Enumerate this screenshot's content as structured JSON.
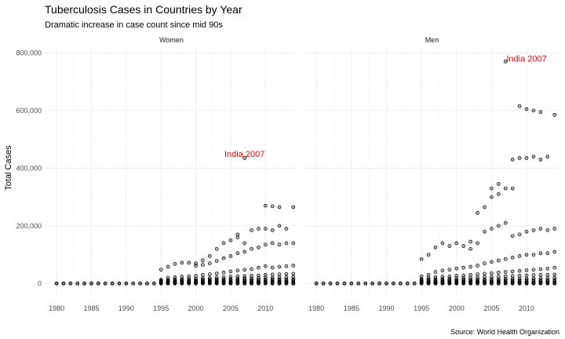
{
  "chart_data": {
    "type": "scatter",
    "title": "Tuberculosis Cases in Countries by Year",
    "subtitle": "Dramatic increase in case count since mid 90s",
    "ylabel": "Total Cases",
    "caption": "Source: World Health Organization",
    "xlim": [
      1978.3,
      2014.7
    ],
    "ylim": [
      -40000,
      820000
    ],
    "x_ticks": [
      1980,
      1985,
      1990,
      1995,
      2000,
      2005,
      2010
    ],
    "y_ticks": [
      0,
      200000,
      400000,
      600000,
      800000
    ],
    "y_tick_labels": [
      "0",
      "200,000",
      "400,000",
      "600,000",
      "800,000"
    ],
    "grid": true,
    "point_color": "#000000",
    "annotation_color": "#ff0000",
    "facets": [
      {
        "name": "Women",
        "annotation": {
          "text": "India 2007",
          "x": 2007,
          "y": 450000
        },
        "series": [
          {
            "x": 1980,
            "values": [
              0,
              500
            ]
          },
          {
            "x": 1981,
            "values": [
              0,
              400
            ]
          },
          {
            "x": 1982,
            "values": [
              0,
              500
            ]
          },
          {
            "x": 1983,
            "values": [
              0,
              300
            ]
          },
          {
            "x": 1984,
            "values": [
              0,
              400
            ]
          },
          {
            "x": 1985,
            "values": [
              0,
              500
            ]
          },
          {
            "x": 1986,
            "values": [
              0,
              400
            ]
          },
          {
            "x": 1987,
            "values": [
              0,
              300
            ]
          },
          {
            "x": 1988,
            "values": [
              0,
              400
            ]
          },
          {
            "x": 1989,
            "values": [
              0,
              500
            ]
          },
          {
            "x": 1990,
            "values": [
              0,
              400
            ]
          },
          {
            "x": 1991,
            "values": [
              0,
              300
            ]
          },
          {
            "x": 1992,
            "values": [
              0,
              500
            ]
          },
          {
            "x": 1993,
            "values": [
              0,
              400
            ]
          },
          {
            "x": 1994,
            "values": [
              0,
              500
            ]
          },
          {
            "x": 1995,
            "values": [
              0,
              1000,
              2000,
              3000,
              4000,
              6000,
              8000,
              10000,
              13000,
              48000
            ]
          },
          {
            "x": 1996,
            "values": [
              0,
              1000,
              2000,
              3000,
              5000,
              7000,
              9000,
              12000,
              20000,
              58000
            ]
          },
          {
            "x": 1997,
            "values": [
              0,
              1000,
              2000,
              3000,
              5000,
              7000,
              10000,
              14000,
              22000,
              68000
            ]
          },
          {
            "x": 1998,
            "values": [
              0,
              1000,
              2000,
              4000,
              6000,
              8000,
              11000,
              15000,
              24000,
              72000
            ]
          },
          {
            "x": 1999,
            "values": [
              0,
              1000,
              2000,
              4000,
              6000,
              8000,
              11000,
              16000,
              25000,
              72000
            ]
          },
          {
            "x": 2000,
            "values": [
              0,
              1000,
              2000,
              4000,
              6000,
              9000,
              12000,
              17000,
              27000,
              62000,
              70000
            ]
          },
          {
            "x": 2001,
            "values": [
              0,
              1000,
              3000,
              5000,
              7000,
              10000,
              13000,
              18000,
              30000,
              65000,
              80000
            ]
          },
          {
            "x": 2002,
            "values": [
              0,
              1000,
              3000,
              5000,
              7000,
              10000,
              14000,
              19000,
              32000,
              70000,
              95000
            ]
          },
          {
            "x": 2003,
            "values": [
              0,
              1000,
              3000,
              5000,
              8000,
              11000,
              15000,
              21000,
              35000,
              78000,
              120000
            ]
          },
          {
            "x": 2004,
            "values": [
              0,
              1000,
              3000,
              5000,
              8000,
              11000,
              15000,
              22000,
              38000,
              88000,
              140000
            ]
          },
          {
            "x": 2005,
            "values": [
              0,
              1000,
              3000,
              6000,
              8000,
              12000,
              16000,
              24000,
              42000,
              95000,
              150000
            ]
          },
          {
            "x": 2006,
            "values": [
              0,
              1000,
              3000,
              6000,
              9000,
              12000,
              17000,
              25000,
              45000,
              105000,
              160000,
              170000
            ]
          },
          {
            "x": 2007,
            "values": [
              0,
              1000,
              3000,
              6000,
              9000,
              13000,
              18000,
              26000,
              48000,
              110000,
              140000,
              435000
            ]
          },
          {
            "x": 2008,
            "values": [
              0,
              1000,
              3000,
              6000,
              9000,
              13000,
              18000,
              27000,
              50000,
              120000,
              185000
            ]
          },
          {
            "x": 2009,
            "values": [
              0,
              1000,
              3000,
              6000,
              9000,
              13000,
              19000,
              28000,
              55000,
              125000,
              190000
            ]
          },
          {
            "x": 2010,
            "values": [
              0,
              1000,
              3000,
              6000,
              10000,
              14000,
              20000,
              30000,
              60000,
              135000,
              190000,
              270000
            ]
          },
          {
            "x": 2011,
            "values": [
              0,
              1000,
              3000,
              6000,
              10000,
              14000,
              20000,
              31000,
              55000,
              140000,
              185000,
              268000
            ]
          },
          {
            "x": 2012,
            "values": [
              0,
              1000,
              3000,
              6000,
              10000,
              14000,
              21000,
              32000,
              58000,
              135000,
              200000,
              265000
            ]
          },
          {
            "x": 2013,
            "values": [
              0,
              1000,
              3000,
              6000,
              10000,
              14000,
              21000,
              33000,
              60000,
              140000,
              190000
            ]
          },
          {
            "x": 2014,
            "values": [
              0,
              1000,
              3000,
              6000,
              10000,
              14000,
              22000,
              34000,
              62000,
              140000,
              265000
            ]
          }
        ]
      },
      {
        "name": "Men",
        "annotation": {
          "text": "India 2007",
          "x": 2010,
          "y": 780000
        },
        "series": [
          {
            "x": 1980,
            "values": [
              0,
              600
            ]
          },
          {
            "x": 1981,
            "values": [
              0,
              500
            ]
          },
          {
            "x": 1982,
            "values": [
              0,
              600
            ]
          },
          {
            "x": 1983,
            "values": [
              0,
              400
            ]
          },
          {
            "x": 1984,
            "values": [
              0,
              500
            ]
          },
          {
            "x": 1985,
            "values": [
              0,
              600
            ]
          },
          {
            "x": 1986,
            "values": [
              0,
              500
            ]
          },
          {
            "x": 1987,
            "values": [
              0,
              400
            ]
          },
          {
            "x": 1988,
            "values": [
              0,
              500
            ]
          },
          {
            "x": 1989,
            "values": [
              0,
              600
            ]
          },
          {
            "x": 1990,
            "values": [
              0,
              500
            ]
          },
          {
            "x": 1991,
            "values": [
              0,
              400
            ]
          },
          {
            "x": 1992,
            "values": [
              0,
              600
            ]
          },
          {
            "x": 1993,
            "values": [
              0,
              500
            ]
          },
          {
            "x": 1994,
            "values": [
              0,
              600
            ]
          },
          {
            "x": 1995,
            "values": [
              0,
              1000,
              2000,
              4000,
              6000,
              9000,
              12000,
              16000,
              25000,
              85000
            ]
          },
          {
            "x": 1996,
            "values": [
              0,
              1000,
              2000,
              4000,
              7000,
              10000,
              14000,
              20000,
              30000,
              100000
            ]
          },
          {
            "x": 1997,
            "values": [
              0,
              1000,
              3000,
              5000,
              7000,
              10000,
              15000,
              22000,
              40000,
              125000
            ]
          },
          {
            "x": 1998,
            "values": [
              0,
              1000,
              3000,
              5000,
              8000,
              11000,
              16000,
              24000,
              45000,
              140000
            ]
          },
          {
            "x": 1999,
            "values": [
              0,
              1000,
              3000,
              5000,
              8000,
              12000,
              17000,
              25000,
              48000,
              130000
            ]
          },
          {
            "x": 2000,
            "values": [
              0,
              1000,
              3000,
              5000,
              8000,
              12000,
              18000,
              27000,
              52000,
              140000
            ]
          },
          {
            "x": 2001,
            "values": [
              0,
              1000,
              3000,
              6000,
              9000,
              13000,
              19000,
              28000,
              55000,
              130000
            ]
          },
          {
            "x": 2002,
            "values": [
              0,
              1000,
              3000,
              6000,
              9000,
              13000,
              20000,
              30000,
              58000,
              120000,
              145000
            ]
          },
          {
            "x": 2003,
            "values": [
              0,
              1000,
              3000,
              6000,
              9000,
              14000,
              21000,
              32000,
              62000,
              140000,
              245000
            ]
          },
          {
            "x": 2004,
            "values": [
              0,
              1000,
              3000,
              6000,
              10000,
              14000,
              22000,
              34000,
              70000,
              180000,
              265000
            ]
          },
          {
            "x": 2005,
            "values": [
              0,
              1000,
              3000,
              6000,
              10000,
              15000,
              23000,
              36000,
              75000,
              190000,
              300000,
              330000
            ]
          },
          {
            "x": 2006,
            "values": [
              0,
              1000,
              3000,
              7000,
              10000,
              15000,
              24000,
              38000,
              80000,
              200000,
              310000,
              345000
            ]
          },
          {
            "x": 2007,
            "values": [
              0,
              1000,
              3000,
              7000,
              11000,
              16000,
              25000,
              40000,
              85000,
              210000,
              330000,
              770000
            ]
          },
          {
            "x": 2008,
            "values": [
              0,
              1000,
              3000,
              7000,
              11000,
              16000,
              26000,
              42000,
              90000,
              165000,
              330000,
              430000
            ]
          },
          {
            "x": 2009,
            "values": [
              0,
              1000,
              3000,
              7000,
              11000,
              17000,
              27000,
              44000,
              95000,
              170000,
              435000,
              615000
            ]
          },
          {
            "x": 2010,
            "values": [
              0,
              1000,
              3000,
              7000,
              12000,
              17000,
              28000,
              46000,
              100000,
              180000,
              435000,
              605000
            ]
          },
          {
            "x": 2011,
            "values": [
              0,
              1000,
              3000,
              7000,
              12000,
              18000,
              29000,
              48000,
              100000,
              185000,
              440000,
              600000
            ]
          },
          {
            "x": 2012,
            "values": [
              0,
              1000,
              3000,
              7000,
              12000,
              18000,
              30000,
              50000,
              105000,
              190000,
              430000,
              595000
            ]
          },
          {
            "x": 2013,
            "values": [
              0,
              1000,
              3000,
              7000,
              12000,
              18000,
              30000,
              52000,
              105000,
              185000,
              440000
            ]
          },
          {
            "x": 2014,
            "values": [
              0,
              1000,
              3000,
              7000,
              12000,
              19000,
              31000,
              55000,
              110000,
              190000,
              585000
            ]
          }
        ]
      }
    ]
  }
}
